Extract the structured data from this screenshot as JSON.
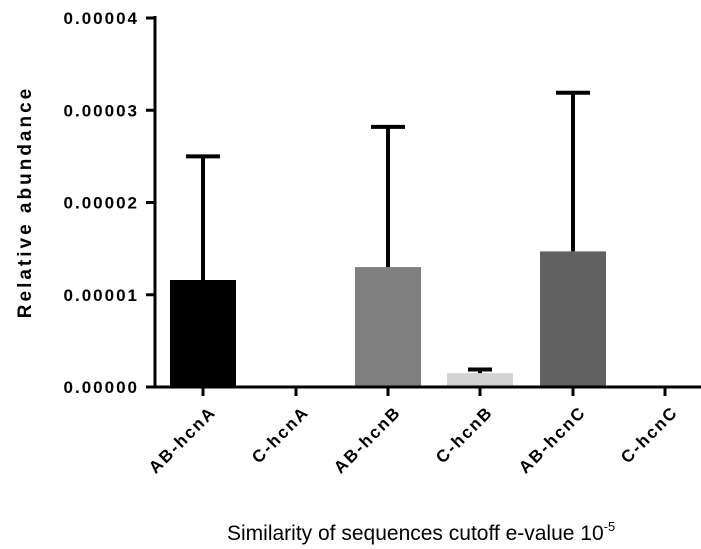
{
  "chart_data": {
    "type": "bar",
    "categories": [
      "AB-hcnA",
      "C-hcnA",
      "AB-hcnB",
      "C-hcnB",
      "AB-hcnC",
      "C-hcnC"
    ],
    "values": [
      1.16e-05,
      0,
      1.3e-05,
      1.5e-06,
      1.47e-05,
      0
    ],
    "error_upper": [
      2.5e-05,
      0,
      2.82e-05,
      1.9e-06,
      3.19e-05,
      0
    ],
    "colors": [
      "#000000",
      "#ffffff",
      "#808080",
      "#d3d3d3",
      "#616161",
      "#ffffff"
    ],
    "ylabel": "Relative abundance",
    "xlabel": "Similarity of sequences cutoff e-value 10",
    "xlabel_superscript": "-5",
    "ylim": [
      0,
      4e-05
    ],
    "yticks": [
      0,
      1e-05,
      2e-05,
      3e-05,
      4e-05
    ],
    "ytick_labels": [
      "0.00000",
      "0.00001",
      "0.00002",
      "0.00003",
      "0.00004"
    ],
    "grid": false
  }
}
